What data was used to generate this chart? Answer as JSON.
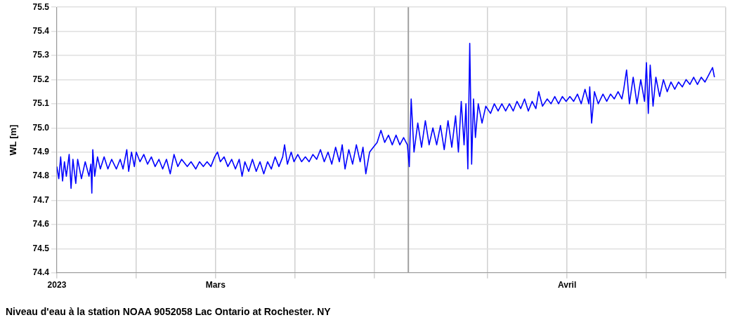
{
  "chart_data": {
    "type": "line",
    "title": "Niveau d'eau à la station NOAA 9052058 Lac Ontario at Rochester. NY",
    "ylabel": "WL [m]",
    "xlim": [
      "2023-02-15",
      "2023-04-15"
    ],
    "xticks": [
      {
        "value": "2023-02-15",
        "label": "2023"
      },
      {
        "value": "2023-02-22",
        "label": null
      },
      {
        "value": "2023-03-01",
        "label": "Mars"
      },
      {
        "value": "2023-03-08",
        "label": null
      },
      {
        "value": "2023-03-15",
        "label": null
      },
      {
        "value": "2023-03-25",
        "label": null
      },
      {
        "value": "2023-04-01",
        "label": "Avril"
      },
      {
        "value": "2023-04-08",
        "label": null
      },
      {
        "value": "2023-04-15",
        "label": null
      }
    ],
    "ylim": [
      74.4,
      75.5
    ],
    "yticks": [
      74.4,
      74.5,
      74.6,
      74.7,
      74.8,
      74.9,
      {
        "value": 75,
        "label": "75.0"
      },
      75.1,
      75.2,
      75.3,
      75.4,
      75.5
    ],
    "ref_lines": [
      {
        "axis": "x",
        "value": "2023-03-18",
        "color": "#a0a0a0"
      }
    ],
    "grid": true,
    "legend": false,
    "marker": "none",
    "line_style": "solid",
    "series": [
      {
        "color": "#0000ff",
        "x": [
          "2023-02-15T00:00",
          "2023-02-15T04:00",
          "2023-02-15T08:00",
          "2023-02-15T12:00",
          "2023-02-15T16:00",
          "2023-02-15T20:00",
          "2023-02-16T02:00",
          "2023-02-16T06:00",
          "2023-02-16T10:00",
          "2023-02-16T16:00",
          "2023-02-16T20:00",
          "2023-02-17T04:00",
          "2023-02-17T12:00",
          "2023-02-17T20:00",
          "2023-02-18T00:00",
          "2023-02-18T02:00",
          "2023-02-18T04:00",
          "2023-02-18T08:00",
          "2023-02-18T14:00",
          "2023-02-18T20:00",
          "2023-02-19T04:00",
          "2023-02-19T12:00",
          "2023-02-19T20:00",
          "2023-02-20T06:00",
          "2023-02-20T14:00",
          "2023-02-20T20:00",
          "2023-02-21T04:00",
          "2023-02-21T08:00",
          "2023-02-21T14:00",
          "2023-02-21T20:00",
          "2023-02-22T00:00",
          "2023-02-22T08:00",
          "2023-02-22T16:00",
          "2023-02-23T00:00",
          "2023-02-23T08:00",
          "2023-02-23T16:00",
          "2023-02-24T00:00",
          "2023-02-24T08:00",
          "2023-02-24T16:00",
          "2023-02-25T00:00",
          "2023-02-25T08:00",
          "2023-02-25T16:00",
          "2023-02-26T00:00",
          "2023-02-26T12:00",
          "2023-02-26T20:00",
          "2023-02-27T06:00",
          "2023-02-27T14:00",
          "2023-02-27T22:00",
          "2023-02-28T06:00",
          "2023-02-28T14:00",
          "2023-02-28T22:00",
          "2023-03-01T04:00",
          "2023-03-01T10:00",
          "2023-03-01T18:00",
          "2023-03-02T02:00",
          "2023-03-02T10:00",
          "2023-03-02T18:00",
          "2023-03-03T02:00",
          "2023-03-03T08:00",
          "2023-03-03T14:00",
          "2023-03-03T22:00",
          "2023-03-04T06:00",
          "2023-03-04T14:00",
          "2023-03-04T22:00",
          "2023-03-05T06:00",
          "2023-03-05T14:00",
          "2023-03-05T22:00",
          "2023-03-06T06:00",
          "2023-03-06T14:00",
          "2023-03-06T22:00",
          "2023-03-07T02:00",
          "2023-03-07T08:00",
          "2023-03-07T16:00",
          "2023-03-07T22:00",
          "2023-03-08T06:00",
          "2023-03-08T14:00",
          "2023-03-08T22:00",
          "2023-03-09T06:00",
          "2023-03-09T14:00",
          "2023-03-09T22:00",
          "2023-03-10T06:00",
          "2023-03-10T14:00",
          "2023-03-10T22:00",
          "2023-03-11T06:00",
          "2023-03-11T14:00",
          "2023-03-11T22:00",
          "2023-03-12T04:00",
          "2023-03-12T10:00",
          "2023-03-12T18:00",
          "2023-03-13T02:00",
          "2023-03-13T10:00",
          "2023-03-13T18:00",
          "2023-03-14T00:00",
          "2023-03-14T06:00",
          "2023-03-14T14:00",
          "2023-03-14T22:00",
          "2023-03-15T06:00",
          "2023-03-15T14:00",
          "2023-03-15T22:00",
          "2023-03-16T06:00",
          "2023-03-16T14:00",
          "2023-03-16T22:00",
          "2023-03-17T06:00",
          "2023-03-17T14:00",
          "2023-03-17T22:00",
          "2023-03-18T02:00",
          "2023-03-18T06:00",
          "2023-03-18T12:00",
          "2023-03-18T20:00",
          "2023-03-19T04:00",
          "2023-03-19T12:00",
          "2023-03-19T20:00",
          "2023-03-20T04:00",
          "2023-03-20T12:00",
          "2023-03-20T20:00",
          "2023-03-21T04:00",
          "2023-03-21T12:00",
          "2023-03-21T20:00",
          "2023-03-22T04:00",
          "2023-03-22T10:00",
          "2023-03-22T16:00",
          "2023-03-22T22:00",
          "2023-03-23T02:00",
          "2023-03-23T06:00",
          "2023-03-23T10:00",
          "2023-03-23T14:00",
          "2023-03-23T18:00",
          "2023-03-23T22:00",
          "2023-03-24T04:00",
          "2023-03-24T12:00",
          "2023-03-24T20:00",
          "2023-03-25T06:00",
          "2023-03-25T14:00",
          "2023-03-25T22:00",
          "2023-03-26T06:00",
          "2023-03-26T14:00",
          "2023-03-26T22:00",
          "2023-03-27T06:00",
          "2023-03-27T14:00",
          "2023-03-27T22:00",
          "2023-03-28T06:00",
          "2023-03-28T14:00",
          "2023-03-28T22:00",
          "2023-03-29T06:00",
          "2023-03-29T12:00",
          "2023-03-29T20:00",
          "2023-03-30T06:00",
          "2023-03-30T14:00",
          "2023-03-30T22:00",
          "2023-03-31T06:00",
          "2023-03-31T14:00",
          "2023-03-31T22:00",
          "2023-04-01T06:00",
          "2023-04-01T14:00",
          "2023-04-01T22:00",
          "2023-04-02T06:00",
          "2023-04-02T14:00",
          "2023-04-02T22:00",
          "2023-04-03T00:00",
          "2023-04-03T04:00",
          "2023-04-03T10:00",
          "2023-04-03T18:00",
          "2023-04-04T04:00",
          "2023-04-04T12:00",
          "2023-04-04T20:00",
          "2023-04-05T04:00",
          "2023-04-05T12:00",
          "2023-04-05T20:00",
          "2023-04-06T00:00",
          "2023-04-06T06:00",
          "2023-04-06T12:00",
          "2023-04-06T20:00",
          "2023-04-07T04:00",
          "2023-04-07T12:00",
          "2023-04-07T20:00",
          "2023-04-08T00:00",
          "2023-04-08T04:00",
          "2023-04-08T08:00",
          "2023-04-08T14:00",
          "2023-04-08T20:00",
          "2023-04-09T04:00",
          "2023-04-09T12:00",
          "2023-04-09T20:00",
          "2023-04-10T04:00",
          "2023-04-10T12:00",
          "2023-04-10T20:00",
          "2023-04-11T04:00",
          "2023-04-11T12:00",
          "2023-04-11T20:00",
          "2023-04-12T04:00",
          "2023-04-12T12:00",
          "2023-04-12T20:00",
          "2023-04-13T04:00",
          "2023-04-13T12:00",
          "2023-04-13T20:00",
          "2023-04-14T00:00"
        ],
        "values": [
          74.84,
          74.79,
          74.88,
          74.78,
          74.86,
          74.8,
          74.89,
          74.75,
          74.87,
          74.77,
          74.87,
          74.79,
          74.86,
          74.8,
          74.85,
          74.73,
          74.91,
          74.8,
          74.88,
          74.83,
          74.88,
          74.83,
          74.87,
          74.83,
          74.87,
          74.83,
          74.91,
          74.82,
          74.9,
          74.84,
          74.9,
          74.86,
          74.89,
          74.85,
          74.88,
          74.84,
          74.87,
          74.83,
          74.87,
          74.81,
          74.89,
          74.84,
          74.87,
          74.84,
          74.86,
          74.83,
          74.86,
          74.84,
          74.86,
          74.84,
          74.88,
          74.9,
          74.86,
          74.88,
          74.84,
          74.87,
          74.83,
          74.87,
          74.8,
          74.86,
          74.82,
          74.87,
          74.82,
          74.86,
          74.81,
          74.86,
          74.83,
          74.88,
          74.84,
          74.88,
          74.93,
          74.85,
          74.9,
          74.86,
          74.89,
          74.86,
          74.88,
          74.86,
          74.89,
          74.87,
          74.91,
          74.86,
          74.9,
          74.85,
          74.92,
          74.86,
          74.93,
          74.83,
          74.91,
          74.85,
          74.93,
          74.86,
          74.92,
          74.81,
          74.9,
          74.92,
          74.94,
          74.99,
          74.94,
          74.97,
          74.93,
          74.97,
          74.93,
          74.96,
          74.93,
          74.84,
          75.12,
          74.9,
          75.02,
          74.92,
          75.03,
          74.93,
          75.0,
          74.93,
          75.01,
          74.91,
          75.03,
          74.92,
          75.05,
          74.9,
          75.11,
          74.93,
          75.1,
          74.83,
          75.35,
          74.85,
          75.12,
          74.96,
          75.1,
          75.02,
          75.09,
          75.06,
          75.1,
          75.07,
          75.1,
          75.07,
          75.1,
          75.07,
          75.11,
          75.08,
          75.12,
          75.07,
          75.11,
          75.08,
          75.15,
          75.09,
          75.12,
          75.1,
          75.13,
          75.1,
          75.13,
          75.11,
          75.13,
          75.11,
          75.14,
          75.1,
          75.16,
          75.1,
          75.17,
          75.02,
          75.15,
          75.1,
          75.14,
          75.11,
          75.14,
          75.12,
          75.15,
          75.12,
          75.16,
          75.24,
          75.1,
          75.21,
          75.1,
          75.2,
          75.11,
          75.27,
          75.06,
          75.26,
          75.09,
          75.21,
          75.13,
          75.2,
          75.15,
          75.19,
          75.16,
          75.19,
          75.17,
          75.2,
          75.18,
          75.21,
          75.18,
          75.21,
          75.19,
          75.22,
          75.25,
          75.21
        ]
      }
    ]
  }
}
